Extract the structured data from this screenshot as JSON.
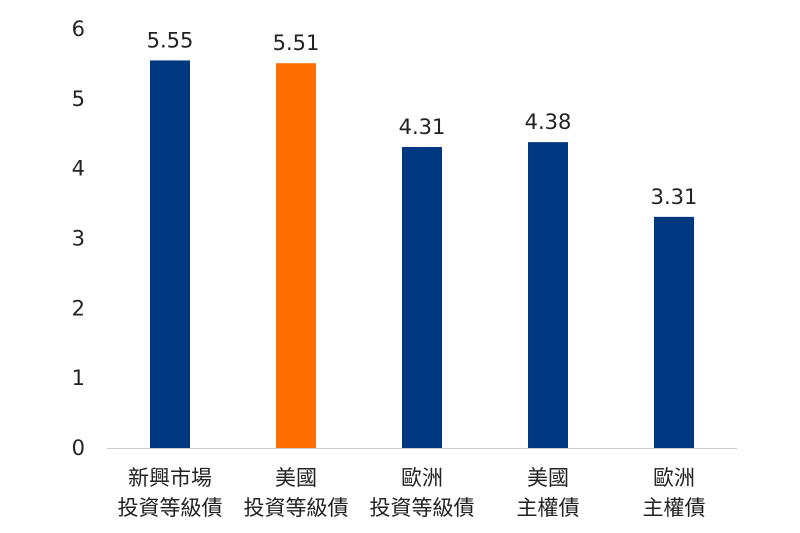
{
  "chart_data": {
    "type": "bar",
    "categories": [
      [
        "新興市場",
        "投資等級債"
      ],
      [
        "美國",
        "投資等級債"
      ],
      [
        "歐洲",
        "投資等級債"
      ],
      [
        "美國",
        "主權債"
      ],
      [
        "歐洲",
        "主權債"
      ]
    ],
    "values": [
      5.55,
      5.51,
      4.31,
      4.38,
      3.31
    ],
    "data_labels": [
      "5.55",
      "5.51",
      "4.31",
      "4.38",
      "3.31"
    ],
    "yticks": [
      "0",
      "1",
      "2",
      "3",
      "4",
      "5",
      "6"
    ],
    "ylim": [
      0,
      6
    ],
    "grid": false,
    "legend": "none",
    "colors": {
      "default": "#003781",
      "highlight": "#FF6E00",
      "axis": "#cccccc"
    },
    "highlight_index": 1
  }
}
